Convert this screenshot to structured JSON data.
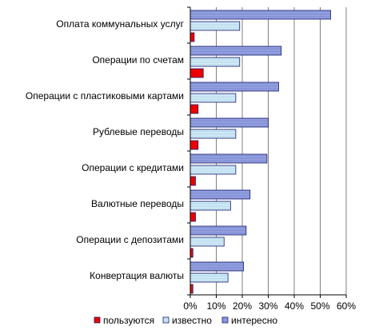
{
  "chart_data": {
    "type": "bar",
    "orientation": "horizontal",
    "categories": [
      "Оплата коммунальных услуг",
      "Операции по счетам",
      "Операции с пластиковыми картами",
      "Рублевые переводы",
      "Операции с кредитами",
      "Валютные переводы",
      "Операции с депозитами",
      "Конвертация валюты"
    ],
    "series": [
      {
        "name": "интересно",
        "values": [
          54,
          35,
          34,
          30,
          29.5,
          23,
          21.5,
          20.5
        ],
        "color": "#9aa8e6",
        "pattern": "horizontal-hatch"
      },
      {
        "name": "известно",
        "values": [
          19,
          19,
          17.5,
          17.5,
          17.5,
          15.5,
          13,
          14.5
        ],
        "color": "#cfe9f7",
        "pattern": "horizontal-hatch"
      },
      {
        "name": "пользуются",
        "values": [
          1.5,
          5,
          3,
          3,
          2,
          2,
          1,
          1
        ],
        "color": "#ee0000",
        "pattern": "solid"
      }
    ],
    "legend_order": [
      "пользуются",
      "известно",
      "интересно"
    ],
    "xlim": [
      0,
      60
    ],
    "xticks": [
      0,
      10,
      20,
      30,
      40,
      50,
      60
    ],
    "tick_labels": [
      "0%",
      "10%",
      "20%",
      "30%",
      "40%",
      "50%",
      "60%"
    ],
    "grid": true,
    "legend_position": "bottom",
    "title": "",
    "xlabel": "",
    "ylabel": ""
  }
}
